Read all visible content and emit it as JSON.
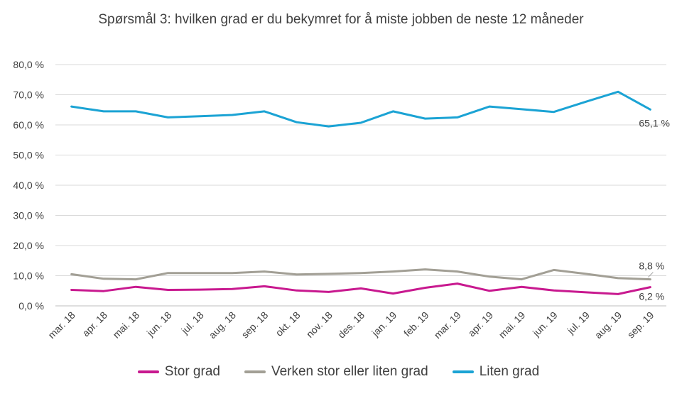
{
  "chart_data": {
    "type": "line",
    "title": "Spørsmål 3: hvilken  grad er du bekymret for å miste jobben de neste 12 måneder",
    "categories": [
      "mar. 18",
      "apr. 18",
      "mai. 18",
      "jun. 18",
      "jul. 18",
      "aug. 18",
      "sep. 18",
      "okt. 18",
      "nov. 18",
      "des. 18",
      "jan. 19",
      "feb. 19",
      "mar. 19",
      "apr. 19",
      "mai. 19",
      "jun. 19",
      "jul. 19",
      "aug. 19",
      "sep. 19"
    ],
    "yticks": [
      "0,0 %",
      "10,0 %",
      "20,0 %",
      "30,0 %",
      "40,0 %",
      "50,0 %",
      "60,0 %",
      "70,0 %",
      "80,0 %"
    ],
    "ylim": [
      0,
      80
    ],
    "grid": true,
    "legend_position": "bottom",
    "series": [
      {
        "name": "Stor grad",
        "color": "#c8198f",
        "values": [
          5.3,
          4.9,
          6.3,
          5.3,
          5.4,
          5.6,
          6.5,
          5.1,
          4.6,
          5.8,
          4.1,
          6.0,
          7.4,
          5.0,
          6.3,
          5.1,
          4.5,
          3.9,
          6.2
        ],
        "end_label": "6,2 %"
      },
      {
        "name": "Verken stor eller liten grad",
        "color": "#a29f95",
        "values": [
          10.5,
          9.0,
          8.8,
          10.9,
          10.9,
          10.9,
          11.4,
          10.4,
          10.6,
          10.9,
          11.4,
          12.1,
          11.4,
          9.7,
          8.8,
          11.9,
          10.6,
          9.2,
          8.8
        ],
        "end_label": "8,8 %"
      },
      {
        "name": "Liten grad",
        "color": "#1ba3d4",
        "values": [
          66.1,
          64.5,
          64.5,
          62.5,
          62.9,
          63.3,
          64.5,
          60.9,
          59.5,
          60.7,
          64.5,
          62.1,
          62.5,
          66.1,
          65.2,
          64.3,
          67.7,
          71.0,
          65.1
        ],
        "end_label": "65,1 %"
      }
    ]
  }
}
